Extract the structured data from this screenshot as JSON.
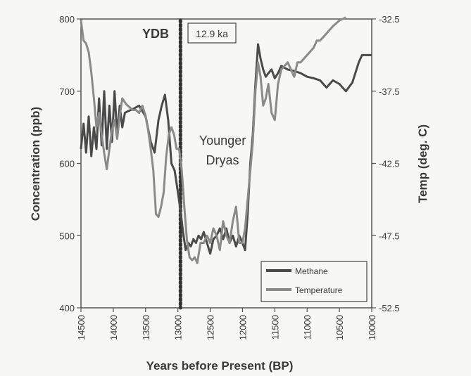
{
  "chart_data": {
    "type": "line",
    "xlabel": "Years before Present (BP)",
    "ylabel": "Concentration (ppb)",
    "y2label": "Temp (deg. C)",
    "xlim": [
      14500,
      10000
    ],
    "ylim": [
      400,
      800
    ],
    "y2lim": [
      -52.5,
      -32.5
    ],
    "x_ticks": [
      "14500",
      "14000",
      "13500",
      "13000",
      "12500",
      "12000",
      "11500",
      "11000",
      "10500",
      "10000"
    ],
    "y_ticks": [
      "400",
      "500",
      "600",
      "700",
      "800"
    ],
    "y2_ticks": [
      "-52.5",
      "-47.5",
      "-42.5",
      "-37.5",
      "-32.5"
    ],
    "annotations": {
      "ydb_label": "YDB",
      "ydb_x": 12960,
      "date_box": "12.9 ka",
      "period_line1": "Younger",
      "period_line2": "Dryas"
    },
    "legend_position": "bottom-right",
    "grid": false,
    "series": [
      {
        "name": "Methane",
        "axis": "left",
        "color": "#4a4a4a",
        "x": [
          14500,
          14460,
          14420,
          14380,
          14340,
          14300,
          14260,
          14220,
          14180,
          14140,
          14100,
          14060,
          14020,
          13980,
          13940,
          13900,
          13860,
          13820,
          13780,
          13700,
          13600,
          13500,
          13420,
          13360,
          13300,
          13250,
          13200,
          13150,
          13100,
          13050,
          13000,
          12960,
          12920,
          12880,
          12840,
          12800,
          12760,
          12720,
          12680,
          12640,
          12600,
          12550,
          12500,
          12450,
          12400,
          12350,
          12300,
          12250,
          12200,
          12150,
          12100,
          12050,
          12000,
          11960,
          11920,
          11880,
          11840,
          11800,
          11760,
          11720,
          11680,
          11640,
          11600,
          11550,
          11500,
          11450,
          11400,
          11300,
          11200,
          11100,
          11000,
          10900,
          10800,
          10700,
          10600,
          10500,
          10400,
          10300,
          10200,
          10150,
          10100,
          10000
        ],
        "y": [
          620,
          655,
          615,
          665,
          610,
          650,
          620,
          690,
          625,
          700,
          620,
          680,
          630,
          700,
          640,
          680,
          650,
          670,
          672,
          675,
          680,
          665,
          630,
          615,
          660,
          680,
          695,
          660,
          600,
          590,
          560,
          535,
          505,
          480,
          490,
          485,
          495,
          490,
          500,
          495,
          505,
          490,
          475,
          495,
          500,
          510,
          495,
          510,
          490,
          500,
          485,
          500,
          490,
          480,
          530,
          600,
          640,
          710,
          765,
          745,
          730,
          720,
          725,
          730,
          718,
          725,
          735,
          730,
          728,
          725,
          720,
          718,
          715,
          705,
          715,
          710,
          700,
          712,
          740,
          750,
          750,
          750
        ]
      },
      {
        "name": "Temperature",
        "axis": "right",
        "color": "#8a8a8a",
        "x": [
          14500,
          14460,
          14420,
          14380,
          14340,
          14300,
          14260,
          14220,
          14180,
          14140,
          14100,
          14060,
          14020,
          13980,
          13940,
          13900,
          13860,
          13800,
          13700,
          13650,
          13600,
          13550,
          13500,
          13460,
          13420,
          13380,
          13340,
          13300,
          13260,
          13220,
          13180,
          13140,
          13100,
          13060,
          13020,
          12980,
          12940,
          12900,
          12860,
          12820,
          12780,
          12740,
          12700,
          12650,
          12600,
          12550,
          12500,
          12450,
          12400,
          12350,
          12300,
          12250,
          12200,
          12150,
          12100,
          12050,
          12000,
          11960,
          11920,
          11880,
          11840,
          11800,
          11760,
          11720,
          11680,
          11640,
          11600,
          11550,
          11500,
          11450,
          11400,
          11300,
          11200,
          11150,
          11100,
          11000,
          10900,
          10850,
          10800,
          10700,
          10600,
          10500,
          10400
        ],
        "y": [
          -32.6,
          -34.0,
          -34.2,
          -34.8,
          -36.2,
          -38.0,
          -40.0,
          -39.0,
          -40.5,
          -41.8,
          -42.9,
          -41.5,
          -40.2,
          -39.5,
          -40.8,
          -39.2,
          -38.0,
          -38.4,
          -38.8,
          -38.8,
          -39.0,
          -38.5,
          -39.2,
          -40.2,
          -41.5,
          -43.0,
          -46.0,
          -46.2,
          -45.5,
          -44.5,
          -42.0,
          -40.5,
          -40.0,
          -40.5,
          -41.5,
          -41.5,
          -43.0,
          -45.5,
          -47.8,
          -49.0,
          -49.2,
          -49.0,
          -49.4,
          -48.0,
          -48.0,
          -47.5,
          -48.0,
          -47.0,
          -47.5,
          -48.5,
          -46.5,
          -47.5,
          -48.0,
          -46.5,
          -45.5,
          -48.0,
          -48.0,
          -47.0,
          -45.0,
          -43.0,
          -41.0,
          -37.5,
          -35.5,
          -36.5,
          -38.5,
          -38.0,
          -37.0,
          -39.0,
          -39.5,
          -37.0,
          -36.0,
          -35.5,
          -36.5,
          -35.5,
          -35.5,
          -35.0,
          -34.5,
          -34.0,
          -34.0,
          -33.5,
          -33.0,
          -32.6,
          -32.4
        ]
      }
    ]
  }
}
